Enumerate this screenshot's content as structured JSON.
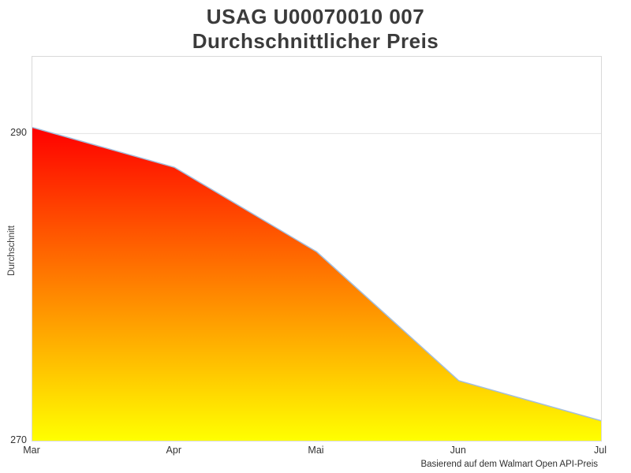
{
  "header": {
    "title_line1": "USAG U00070010 007",
    "title_line2": "Durchschnittlicher Preis"
  },
  "footer": {
    "caption": "Basierend auf dem Walmart Open API-Preis"
  },
  "chart_data": {
    "type": "area",
    "title": "USAG U00070010 007 Durchschnittlicher Preis",
    "categories": [
      "Mar",
      "Apr",
      "Mai",
      "Jun",
      "Jul"
    ],
    "values": [
      290.4,
      287.8,
      282.3,
      273.9,
      271.3
    ],
    "xlabel": "",
    "ylabel": "Durchschnitt",
    "yticks": [
      270,
      290
    ],
    "ylim": [
      270,
      295
    ],
    "grid": "horizontal gridline at 290 only; bottom axis coincides with 270",
    "legend": "none",
    "colors": {
      "area_gradient_top": "#ff0000",
      "area_gradient_bottom": "#ffff00",
      "line": "#a3bedd",
      "plot_border": "#d9d9d9",
      "gridline": "#e3e3e3",
      "title_text": "#3b3b3b",
      "tick_text": "#333333"
    }
  }
}
